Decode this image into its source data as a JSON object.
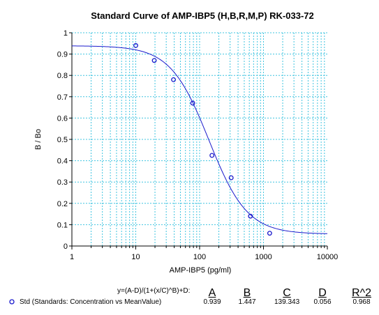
{
  "chart_data": {
    "type": "scatter",
    "title": "Standard Curve of AMP-IBP5 (H,B,R,M,P) RK-033-72",
    "xlabel": "AMP-IBP5 (pg/ml)",
    "ylabel": "B / Bo",
    "xscale": "log",
    "xlim": [
      1,
      10000
    ],
    "ylim": [
      0,
      1
    ],
    "grid": true,
    "xticks": [
      "1",
      "10",
      "100",
      "1000",
      "10000"
    ],
    "yticks": [
      "0",
      "0.1",
      "0.2",
      "0.3",
      "0.4",
      "0.5",
      "0.6",
      "0.7",
      "0.8",
      "0.9",
      "1"
    ],
    "series": [
      {
        "name": "Std (Standards: Concentration vs MeanValue)",
        "marker": "circle",
        "x": [
          10,
          19.5,
          39,
          78,
          156,
          312,
          625,
          1250
        ],
        "y": [
          0.94,
          0.87,
          0.78,
          0.67,
          0.425,
          0.32,
          0.14,
          0.06
        ]
      }
    ],
    "fit": {
      "equation": "y=(A-D)/(1+(x/C)^B)+D:",
      "A": 0.939,
      "B": 1.447,
      "C": 139.343,
      "D": 0.056,
      "R2": 0.968
    }
  },
  "equation_table": {
    "equation": "y=(A-D)/(1+(x/C)^B)+D:",
    "headers": [
      "A",
      "B",
      "C",
      "D",
      "R^2"
    ],
    "row_label": "Std (Standards: Concentration vs MeanValue)",
    "values": [
      "0.939",
      "1.447",
      "139.343",
      "0.056",
      "0.968"
    ]
  },
  "colors": {
    "curve": "#1a1acc",
    "grid": "#3fc4e0",
    "axis": "#000000"
  }
}
